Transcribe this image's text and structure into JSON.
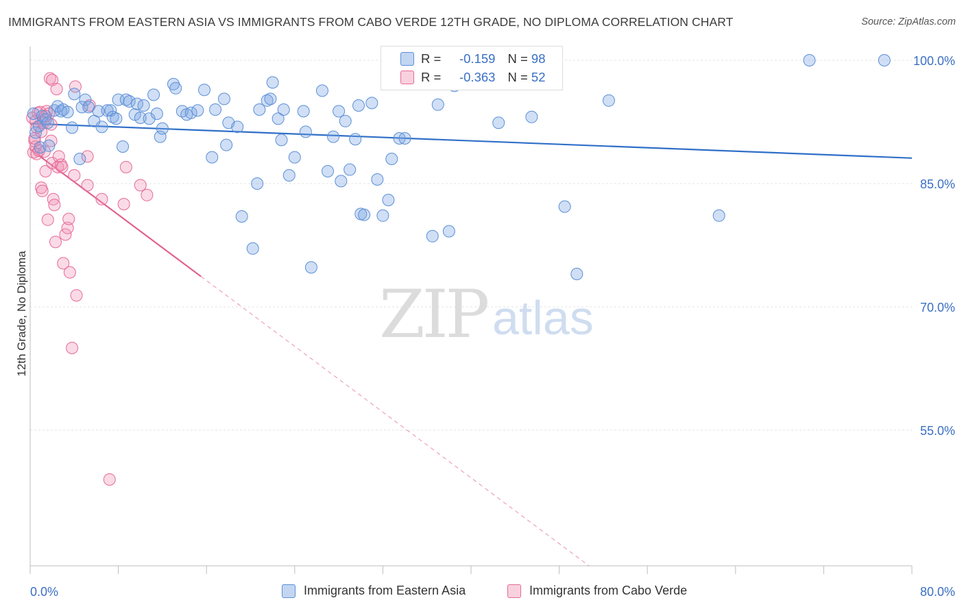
{
  "title": "IMMIGRANTS FROM EASTERN ASIA VS IMMIGRANTS FROM CABO VERDE 12TH GRADE, NO DIPLOMA CORRELATION CHART",
  "source": "Source: ZipAtlas.com",
  "watermark": {
    "zip": "ZIP",
    "atlas": "atlas"
  },
  "colors": {
    "blue": "#5b8fd6",
    "blue_fill": "rgba(120,164,226,0.35)",
    "blue_line": "#2f6fc8",
    "pink": "#e66a95",
    "pink_fill": "rgba(242,150,182,0.35)",
    "pink_line": "#e0628f",
    "axis_text": "#3a6fc4",
    "grid": "#e3e3e3"
  },
  "stats": {
    "rows": [
      {
        "r_label": "R =",
        "r_value": "-0.159",
        "n_label": "N =",
        "n_value": "98"
      },
      {
        "r_label": "R =",
        "r_value": "-0.363",
        "n_label": "N =",
        "n_value": "52"
      }
    ]
  },
  "legend": {
    "items": [
      {
        "label": "Immigrants from Eastern Asia"
      },
      {
        "label": "Immigrants from Cabo Verde"
      }
    ]
  },
  "chart_data": {
    "type": "scatter",
    "title": "IMMIGRANTS FROM EASTERN ASIA VS IMMIGRANTS FROM CABO VERDE 12TH GRADE, NO DIPLOMA CORRELATION CHART",
    "xlabel": "",
    "ylabel": "12th Grade, No Diploma",
    "xlim": [
      0,
      80
    ],
    "ylim": [
      38.5,
      101.5
    ],
    "x_tick_labels": [
      "0.0%",
      "80.0%"
    ],
    "y_ticks": [
      55,
      70,
      85,
      100
    ],
    "y_tick_labels": [
      "55.0%",
      "70.0%",
      "85.0%",
      "100.0%"
    ],
    "grid": true,
    "legend_position": "bottom",
    "series": [
      {
        "name": "Immigrants from Eastern Asia",
        "color": "#5b8fd6",
        "points": [
          [
            0.3,
            93.5
          ],
          [
            0.5,
            91.2
          ],
          [
            0.8,
            92.0
          ],
          [
            0.9,
            89.4
          ],
          [
            1.1,
            93.2
          ],
          [
            1.4,
            92.8
          ],
          [
            1.6,
            92.4
          ],
          [
            1.7,
            89.6
          ],
          [
            2.2,
            93.9
          ],
          [
            2.5,
            94.4
          ],
          [
            2.8,
            93.8
          ],
          [
            3.0,
            94.0
          ],
          [
            3.4,
            93.7
          ],
          [
            3.8,
            91.8
          ],
          [
            4.0,
            95.9
          ],
          [
            4.5,
            88.0
          ],
          [
            4.7,
            94.3
          ],
          [
            5.0,
            95.2
          ],
          [
            5.3,
            94.3
          ],
          [
            6.2,
            93.8
          ],
          [
            5.8,
            92.6
          ],
          [
            6.5,
            91.9
          ],
          [
            7.0,
            93.9
          ],
          [
            7.3,
            93.9
          ],
          [
            7.5,
            93.1
          ],
          [
            7.8,
            92.9
          ],
          [
            8.0,
            95.2
          ],
          [
            8.4,
            89.5
          ],
          [
            8.7,
            95.2
          ],
          [
            9.0,
            95.0
          ],
          [
            9.5,
            93.4
          ],
          [
            9.7,
            94.7
          ],
          [
            10.0,
            93.0
          ],
          [
            10.3,
            94.5
          ],
          [
            10.8,
            92.9
          ],
          [
            11.2,
            95.8
          ],
          [
            11.5,
            93.5
          ],
          [
            11.8,
            90.7
          ],
          [
            12.0,
            91.7
          ],
          [
            13.0,
            97.1
          ],
          [
            13.2,
            96.6
          ],
          [
            13.8,
            93.8
          ],
          [
            14.2,
            93.4
          ],
          [
            14.6,
            93.6
          ],
          [
            15.2,
            93.9
          ],
          [
            15.8,
            96.4
          ],
          [
            16.5,
            88.2
          ],
          [
            16.8,
            94.0
          ],
          [
            17.6,
            95.3
          ],
          [
            17.8,
            89.7
          ],
          [
            18.0,
            92.4
          ],
          [
            18.8,
            91.9
          ],
          [
            19.2,
            81.0
          ],
          [
            20.2,
            77.1
          ],
          [
            20.6,
            85.0
          ],
          [
            20.8,
            94.0
          ],
          [
            21.5,
            95.1
          ],
          [
            21.8,
            95.3
          ],
          [
            22.0,
            97.3
          ],
          [
            22.5,
            92.9
          ],
          [
            22.8,
            90.3
          ],
          [
            23.0,
            94.0
          ],
          [
            23.5,
            86.0
          ],
          [
            24.0,
            88.2
          ],
          [
            24.8,
            93.8
          ],
          [
            25.0,
            91.3
          ],
          [
            25.5,
            74.8
          ],
          [
            26.5,
            96.3
          ],
          [
            27.0,
            86.5
          ],
          [
            27.5,
            90.7
          ],
          [
            28.0,
            93.8
          ],
          [
            28.2,
            85.3
          ],
          [
            28.6,
            92.6
          ],
          [
            29.0,
            86.7
          ],
          [
            29.5,
            90.4
          ],
          [
            29.8,
            94.5
          ],
          [
            30.0,
            81.3
          ],
          [
            30.3,
            81.2
          ],
          [
            31.0,
            94.8
          ],
          [
            31.5,
            85.5
          ],
          [
            32.0,
            81.1
          ],
          [
            32.5,
            83.0
          ],
          [
            32.8,
            88.0
          ],
          [
            33.5,
            90.5
          ],
          [
            34.0,
            90.5
          ],
          [
            36.5,
            78.6
          ],
          [
            37.0,
            94.6
          ],
          [
            38.0,
            79.2
          ],
          [
            38.5,
            96.9
          ],
          [
            42.5,
            92.4
          ],
          [
            45.5,
            93.1
          ],
          [
            48.5,
            82.2
          ],
          [
            49.6,
            74.0
          ],
          [
            52.5,
            95.1
          ],
          [
            62.5,
            81.1
          ],
          [
            70.7,
            100.0
          ],
          [
            77.5,
            100.0
          ],
          [
            37.2,
            100.0
          ]
        ]
      },
      {
        "name": "Immigrants from Cabo Verde",
        "color": "#e66a95",
        "points": [
          [
            0.2,
            93.0
          ],
          [
            0.3,
            88.8
          ],
          [
            0.4,
            90.2
          ],
          [
            0.5,
            89.5
          ],
          [
            0.6,
            88.6
          ],
          [
            0.5,
            92.6
          ],
          [
            0.6,
            91.8
          ],
          [
            0.7,
            93.6
          ],
          [
            0.9,
            93.7
          ],
          [
            1.0,
            91.3
          ],
          [
            1.0,
            84.5
          ],
          [
            1.1,
            84.1
          ],
          [
            1.2,
            92.4
          ],
          [
            1.3,
            88.9
          ],
          [
            1.4,
            86.5
          ],
          [
            1.5,
            93.8
          ],
          [
            1.6,
            80.6
          ],
          [
            1.7,
            93.5
          ],
          [
            1.8,
            97.8
          ],
          [
            1.9,
            92.2
          ],
          [
            1.9,
            90.2
          ],
          [
            2.0,
            97.6
          ],
          [
            2.0,
            87.5
          ],
          [
            2.1,
            83.1
          ],
          [
            2.2,
            82.4
          ],
          [
            2.3,
            77.9
          ],
          [
            2.4,
            96.5
          ],
          [
            2.5,
            87.0
          ],
          [
            2.6,
            88.3
          ],
          [
            2.8,
            87.3
          ],
          [
            2.9,
            87.0
          ],
          [
            3.0,
            75.3
          ],
          [
            3.2,
            78.8
          ],
          [
            3.4,
            79.6
          ],
          [
            3.5,
            80.7
          ],
          [
            3.6,
            74.2
          ],
          [
            3.8,
            65.0
          ],
          [
            4.0,
            86.0
          ],
          [
            4.1,
            96.8
          ],
          [
            4.2,
            71.4
          ],
          [
            5.2,
            88.3
          ],
          [
            5.2,
            84.8
          ],
          [
            5.4,
            94.5
          ],
          [
            6.5,
            83.1
          ],
          [
            7.2,
            49.0
          ],
          [
            8.5,
            82.5
          ],
          [
            10.0,
            84.8
          ],
          [
            10.6,
            83.6
          ],
          [
            8.7,
            87.0
          ],
          [
            0.4,
            90.5
          ],
          [
            0.8,
            89.0
          ],
          [
            1.4,
            93.2
          ]
        ]
      }
    ],
    "trend_lines": [
      {
        "series": "Immigrants from Eastern Asia",
        "x": [
          0,
          80
        ],
        "y": [
          92.3,
          88.1
        ]
      },
      {
        "series": "Immigrants from Cabo Verde",
        "solid_x": [
          0,
          15.5
        ],
        "solid_y": [
          89.2,
          73.7
        ],
        "dashed_x": [
          15.5,
          80
        ],
        "dashed_y": [
          73.7,
          9.2
        ]
      }
    ]
  }
}
